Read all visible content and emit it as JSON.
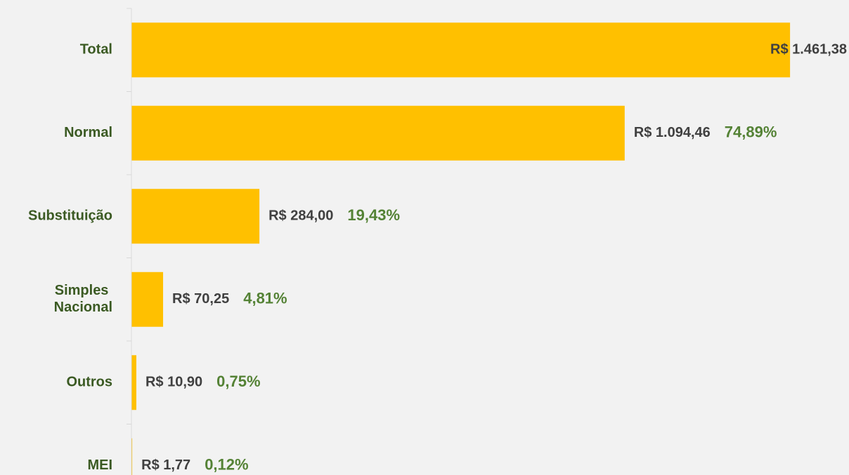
{
  "chart_data": {
    "type": "bar",
    "orientation": "horizontal",
    "categories": [
      "Total",
      "Normal",
      "Substituição",
      "Simples Nacional",
      "Outros",
      "MEI"
    ],
    "values": [
      1461.38,
      1094.46,
      284.0,
      70.25,
      10.9,
      1.77
    ],
    "value_labels": [
      "R$ 1.461,38",
      "R$ 1.094,46",
      "R$ 284,00",
      "R$ 70,25",
      "R$ 10,90",
      "R$ 1,77"
    ],
    "share_labels": [
      null,
      "74,89%",
      "19,43%",
      "4,81%",
      "0,75%",
      "0,12%"
    ],
    "color": "#ffc000",
    "xlim": [
      0,
      1600
    ]
  }
}
